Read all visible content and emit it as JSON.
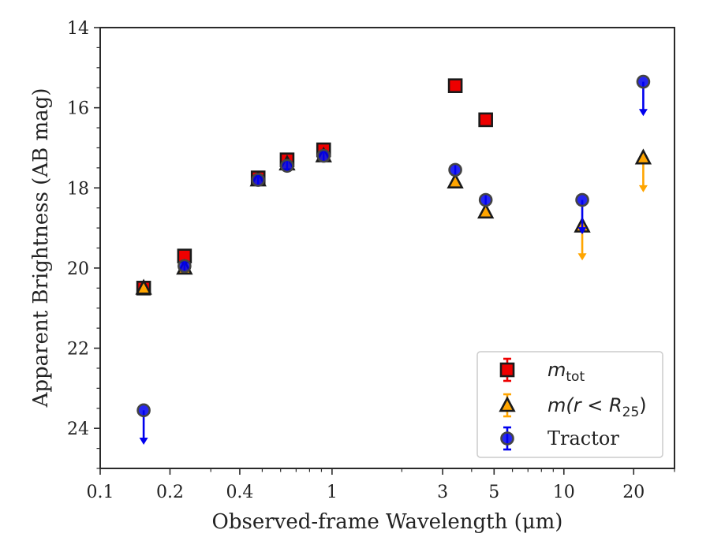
{
  "chart_data": {
    "type": "scatter",
    "xlabel": "Observed-frame Wavelength (μm)",
    "ylabel": "Apparent Brightness (AB mag)",
    "x_scale": "log",
    "xlim": [
      0.1,
      30
    ],
    "ylim": [
      25,
      14
    ],
    "y_inverted": true,
    "x_ticks": [
      {
        "value": 0.1,
        "label": "0.1"
      },
      {
        "value": 0.2,
        "label": "0.2"
      },
      {
        "value": 0.4,
        "label": "0.4"
      },
      {
        "value": 1,
        "label": "1"
      },
      {
        "value": 3,
        "label": "3"
      },
      {
        "value": 5,
        "label": "5"
      },
      {
        "value": 10,
        "label": "10"
      },
      {
        "value": 20,
        "label": "20"
      }
    ],
    "y_ticks": [
      {
        "value": 14,
        "label": "14"
      },
      {
        "value": 16,
        "label": "16"
      },
      {
        "value": 18,
        "label": "18"
      },
      {
        "value": 20,
        "label": "20"
      },
      {
        "value": 22,
        "label": "22"
      },
      {
        "value": 24,
        "label": "24"
      }
    ],
    "grid": false,
    "legend_position": "bottom-right",
    "series": [
      {
        "name": "m_tot",
        "legend_label": {
          "base": "m",
          "sub": "tot",
          "suffix": ""
        },
        "marker": "square",
        "face_color": "#ee0000",
        "edge_color": "#1a1a1a",
        "errorbar_color": "#ee0000",
        "points": [
          {
            "x": 0.154,
            "y": 20.5,
            "upper_limit": false
          },
          {
            "x": 0.231,
            "y": 19.7,
            "upper_limit": false
          },
          {
            "x": 0.48,
            "y": 17.75,
            "upper_limit": false
          },
          {
            "x": 0.64,
            "y": 17.3,
            "upper_limit": false
          },
          {
            "x": 0.92,
            "y": 17.05,
            "upper_limit": false
          },
          {
            "x": 3.4,
            "y": 15.45,
            "upper_limit": false
          },
          {
            "x": 4.6,
            "y": 16.3,
            "upper_limit": false
          }
        ]
      },
      {
        "name": "m(r < R_25)",
        "legend_label": {
          "base": "m(r < R",
          "sub": "25",
          "suffix": ")"
        },
        "marker": "triangle",
        "face_color": "#ffa500",
        "edge_color": "#1a1a1a",
        "errorbar_color": "#ffa500",
        "points": [
          {
            "x": 0.154,
            "y": 20.5,
            "upper_limit": false
          },
          {
            "x": 0.231,
            "y": 20.0,
            "upper_limit": false
          },
          {
            "x": 0.48,
            "y": 17.8,
            "upper_limit": false
          },
          {
            "x": 0.64,
            "y": 17.4,
            "upper_limit": false
          },
          {
            "x": 0.92,
            "y": 17.2,
            "upper_limit": false
          },
          {
            "x": 3.4,
            "y": 17.85,
            "upper_limit": false
          },
          {
            "x": 4.6,
            "y": 18.6,
            "upper_limit": false
          },
          {
            "x": 12.0,
            "y": 18.95,
            "upper_limit": true
          },
          {
            "x": 22.0,
            "y": 17.25,
            "upper_limit": true
          }
        ]
      },
      {
        "name": "Tractor",
        "legend_label": {
          "base": "Tractor",
          "sub": "",
          "suffix": ""
        },
        "marker": "circle",
        "face_color": "#0000ee",
        "edge_color": "#444444",
        "errorbar_color": "#0000ee",
        "points": [
          {
            "x": 0.154,
            "y": 23.55,
            "upper_limit": true
          },
          {
            "x": 0.231,
            "y": 19.95,
            "upper_limit": false
          },
          {
            "x": 0.48,
            "y": 17.8,
            "upper_limit": false
          },
          {
            "x": 0.64,
            "y": 17.45,
            "upper_limit": false
          },
          {
            "x": 0.92,
            "y": 17.2,
            "upper_limit": false
          },
          {
            "x": 3.4,
            "y": 17.55,
            "upper_limit": false
          },
          {
            "x": 4.6,
            "y": 18.3,
            "upper_limit": false
          },
          {
            "x": 12.0,
            "y": 18.3,
            "upper_limit": true
          },
          {
            "x": 22.0,
            "y": 15.35,
            "upper_limit": true
          }
        ]
      }
    ]
  }
}
